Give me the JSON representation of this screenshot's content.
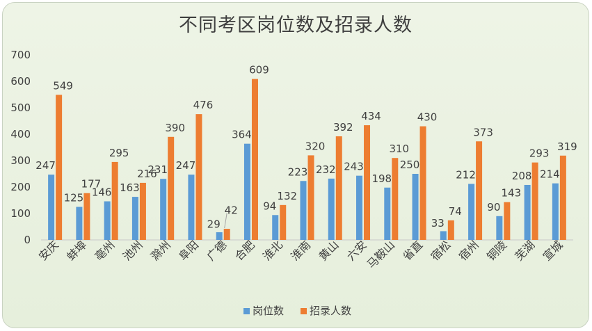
{
  "chart_data": {
    "type": "bar",
    "title": "不同考区岗位数及招录人数",
    "categories": [
      "安庆",
      "蚌埠",
      "亳州",
      "池州",
      "滁州",
      "阜阳",
      "广德",
      "合肥",
      "淮北",
      "淮南",
      "黄山",
      "六安",
      "马鞍山",
      "省直",
      "宿松",
      "宿州",
      "铜陵",
      "芜湖",
      "宣城"
    ],
    "series": [
      {
        "name": "岗位数",
        "color": "#5b9bd5",
        "values": [
          247,
          125,
          146,
          163,
          231,
          247,
          29,
          364,
          94,
          223,
          232,
          243,
          198,
          250,
          33,
          212,
          90,
          208,
          214
        ]
      },
      {
        "name": "招录人数",
        "color": "#ed7d31",
        "values": [
          549,
          177,
          295,
          216,
          390,
          476,
          42,
          609,
          132,
          320,
          392,
          434,
          310,
          430,
          74,
          373,
          143,
          293,
          319
        ]
      }
    ],
    "ylim": [
      0,
      700
    ],
    "yticks": [
      0,
      100,
      200,
      300,
      400,
      500,
      600,
      700
    ],
    "grid": false,
    "legend": "bottom",
    "data_labels": true
  }
}
